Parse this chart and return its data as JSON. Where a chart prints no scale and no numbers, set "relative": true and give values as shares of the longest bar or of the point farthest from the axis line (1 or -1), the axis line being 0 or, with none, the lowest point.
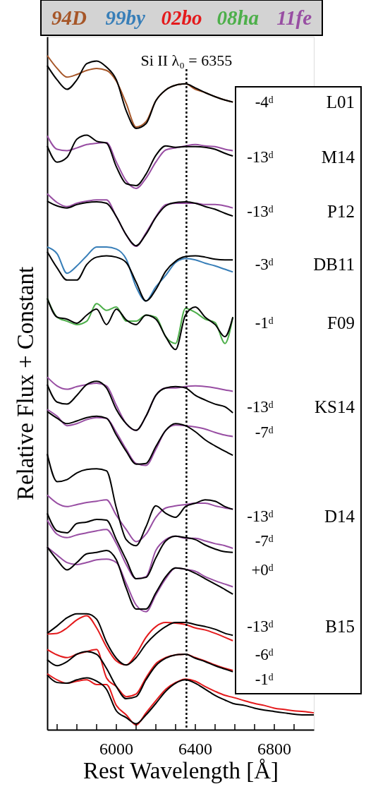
{
  "chart_data": {
    "type": "line",
    "relative": true,
    "xlabel": "Rest Wavelength [Å]",
    "ylabel": "Relative Flux + Constant",
    "xlim": [
      5650,
      7000
    ],
    "xticks": [
      {
        "value": 5700,
        "label": null
      },
      {
        "value": 5800,
        "label": null
      },
      {
        "value": 5900,
        "label": null
      },
      6000,
      {
        "value": 6100,
        "label": null
      },
      {
        "value": 6200,
        "label": null
      },
      {
        "value": 6300,
        "label": null
      },
      6400,
      {
        "value": 6500,
        "label": null
      },
      {
        "value": 6600,
        "label": null
      },
      {
        "value": 6700,
        "label": null
      },
      6800,
      {
        "value": 6900,
        "label": null
      }
    ],
    "tick_labels": "x",
    "grid": false,
    "legend": "top",
    "line_style": "solid",
    "x": [
      5650,
      5700,
      5750,
      5800,
      5850,
      5900,
      5950,
      6000,
      6050,
      6100,
      6150,
      6200,
      6250,
      6300,
      6350,
      6400,
      6450,
      6500,
      6550,
      6590
    ],
    "series": [
      {
        "name": "94D",
        "color": "#a65628",
        "values": [
          1.0,
          0.981,
          0.968,
          0.972,
          0.978,
          0.981,
          0.978,
          0.962,
          0.929,
          0.894,
          0.902,
          0.933,
          0.949,
          0.956,
          0.958,
          0.95,
          0.945,
          0.939,
          0.934,
          0.931
        ]
      },
      {
        "color": "#000000",
        "values": [
          0.985,
          0.964,
          0.95,
          0.964,
          0.988,
          0.992,
          0.983,
          0.964,
          0.918,
          0.892,
          0.899,
          0.933,
          0.949,
          0.956,
          0.958,
          0.952,
          0.945,
          0.939,
          0.934,
          0.931
        ]
      },
      {
        "name": "99by",
        "color": "#377eb8",
        "values": [
          0.716,
          0.706,
          0.677,
          0.688,
          0.703,
          0.716,
          0.716,
          0.713,
          0.698,
          0.657,
          0.636,
          0.657,
          0.674,
          0.693,
          0.699,
          0.697,
          0.692,
          0.688,
          0.683,
          0.679
        ]
      },
      {
        "color": "#000000",
        "values": [
          0.709,
          0.685,
          0.667,
          0.667,
          0.69,
          0.701,
          0.703,
          0.701,
          0.693,
          0.664,
          0.636,
          0.653,
          0.68,
          0.695,
          0.702,
          0.703,
          0.701,
          0.698,
          0.697,
          0.697
        ]
      },
      {
        "name": "02bo",
        "color": "#e41a1c",
        "values": [
          0.142,
          0.143,
          0.151,
          0.163,
          0.169,
          0.151,
          0.123,
          0.102,
          0.096,
          0.112,
          0.137,
          0.153,
          0.159,
          0.158,
          0.156,
          0.151,
          0.148,
          0.143,
          0.137,
          0.132
        ]
      },
      {
        "color": "#000000",
        "values": [
          0.143,
          0.154,
          0.166,
          0.172,
          0.172,
          0.164,
          0.13,
          0.106,
          0.096,
          0.107,
          0.127,
          0.142,
          0.153,
          0.159,
          0.159,
          0.156,
          0.153,
          0.149,
          0.143,
          0.14
        ]
      },
      {
        "color": "#e41a1c",
        "values": [
          0.119,
          0.111,
          0.107,
          0.112,
          0.116,
          0.119,
          0.077,
          0.064,
          0.049,
          0.053,
          0.077,
          0.098,
          0.107,
          0.111,
          0.112,
          0.107,
          0.102,
          0.096,
          0.091,
          0.088
        ]
      },
      {
        "color": "#000000",
        "values": [
          0.104,
          0.095,
          0.101,
          0.112,
          0.116,
          0.112,
          0.091,
          0.064,
          0.046,
          0.049,
          0.074,
          0.095,
          0.106,
          0.111,
          0.112,
          0.106,
          0.101,
          0.095,
          0.09,
          0.086
        ]
      },
      {
        "color": "#e41a1c",
        "x": [
          5650,
          5700,
          5750,
          5800,
          5850,
          5900,
          5950,
          6000,
          6050,
          6100,
          6150,
          6200,
          6250,
          6300,
          6350,
          6400,
          6450,
          6500,
          6550,
          6590,
          6650,
          6700,
          6750,
          6800,
          6850,
          6900,
          6950,
          7000
        ],
        "values": [
          0.083,
          0.074,
          0.069,
          0.072,
          0.074,
          0.067,
          0.067,
          0.036,
          0.022,
          0.007,
          0.025,
          0.043,
          0.06,
          0.07,
          0.075,
          0.072,
          0.064,
          0.057,
          0.051,
          0.048,
          0.043,
          0.039,
          0.036,
          0.032,
          0.03,
          0.028,
          0.027,
          0.025
        ]
      },
      {
        "color": "#000000",
        "x": [
          5650,
          5700,
          5750,
          5800,
          5850,
          5900,
          5950,
          6000,
          6050,
          6100,
          6150,
          6200,
          6250,
          6300,
          6350,
          6400,
          6450,
          6500,
          6550,
          6590,
          6650,
          6700,
          6750,
          6800,
          6850,
          6900,
          6950,
          7000
        ],
        "values": [
          0.081,
          0.07,
          0.069,
          0.074,
          0.077,
          0.072,
          0.06,
          0.028,
          0.018,
          0.009,
          0.022,
          0.039,
          0.057,
          0.069,
          0.074,
          0.069,
          0.06,
          0.051,
          0.044,
          0.039,
          0.036,
          0.032,
          0.029,
          0.027,
          0.025,
          0.023,
          0.022,
          0.022
        ]
      },
      {
        "name": "08ha",
        "color": "#4daf4a",
        "values": [
          0.64,
          0.612,
          0.606,
          0.601,
          0.606,
          0.632,
          0.622,
          0.627,
          0.606,
          0.606,
          0.615,
          0.612,
          0.583,
          0.573,
          0.625,
          0.619,
          0.609,
          0.604,
          0.573,
          0.612
        ]
      },
      {
        "color": "#000000",
        "values": [
          0.64,
          0.612,
          0.609,
          0.603,
          0.615,
          0.624,
          0.601,
          0.624,
          0.608,
          0.601,
          0.615,
          0.609,
          0.583,
          0.564,
          0.615,
          0.627,
          0.612,
          0.601,
          0.583,
          0.612
        ]
      },
      {
        "name": "11fe",
        "color": "#984ea3",
        "values": [
          0.881,
          0.861,
          0.859,
          0.863,
          0.868,
          0.87,
          0.871,
          0.842,
          0.814,
          0.803,
          0.818,
          0.842,
          0.86,
          0.863,
          0.866,
          0.868,
          0.866,
          0.865,
          0.861,
          0.859
        ]
      },
      {
        "color": "#000000",
        "values": [
          0.866,
          0.842,
          0.849,
          0.876,
          0.882,
          0.873,
          0.87,
          0.835,
          0.81,
          0.807,
          0.824,
          0.852,
          0.866,
          0.864,
          0.865,
          0.865,
          0.864,
          0.861,
          0.855,
          0.851
        ]
      },
      {
        "color": "#984ea3",
        "values": [
          0.795,
          0.782,
          0.776,
          0.781,
          0.784,
          0.786,
          0.786,
          0.761,
          0.734,
          0.717,
          0.737,
          0.761,
          0.779,
          0.781,
          0.781,
          0.781,
          0.779,
          0.779,
          0.777,
          0.774
        ]
      },
      {
        "color": "#000000",
        "values": [
          0.784,
          0.777,
          0.774,
          0.779,
          0.782,
          0.783,
          0.781,
          0.761,
          0.734,
          0.718,
          0.735,
          0.76,
          0.777,
          0.782,
          0.783,
          0.781,
          0.776,
          0.772,
          0.766,
          0.762
        ]
      },
      {
        "color": "#984ea3",
        "values": [
          0.523,
          0.51,
          0.505,
          0.509,
          0.512,
          0.514,
          0.51,
          0.481,
          0.454,
          0.444,
          0.465,
          0.496,
          0.507,
          0.507,
          0.509,
          0.51,
          0.509,
          0.507,
          0.504,
          0.502
        ]
      },
      {
        "color": "#000000",
        "values": [
          0.512,
          0.486,
          0.483,
          0.496,
          0.512,
          0.517,
          0.507,
          0.475,
          0.454,
          0.444,
          0.465,
          0.496,
          0.507,
          0.509,
          0.507,
          0.496,
          0.489,
          0.483,
          0.479,
          0.47
        ]
      },
      {
        "color": "#984ea3",
        "values": [
          0.475,
          0.465,
          0.451,
          0.454,
          0.46,
          0.463,
          0.462,
          0.441,
          0.416,
          0.395,
          0.392,
          0.416,
          0.444,
          0.452,
          0.451,
          0.449,
          0.446,
          0.441,
          0.437,
          0.435
        ]
      },
      {
        "color": "#000000",
        "values": [
          0.472,
          0.462,
          0.454,
          0.458,
          0.463,
          0.465,
          0.462,
          0.437,
          0.413,
          0.394,
          0.395,
          0.42,
          0.444,
          0.454,
          0.451,
          0.442,
          0.43,
          0.421,
          0.413,
          0.407
        ]
      },
      {
        "color": "#984ea3",
        "values": [
          0.348,
          0.336,
          0.331,
          0.334,
          0.337,
          0.339,
          0.341,
          0.318,
          0.297,
          0.279,
          0.29,
          0.315,
          0.329,
          0.332,
          0.334,
          0.336,
          0.336,
          0.332,
          0.329,
          0.327
        ]
      },
      {
        "color": "#000000",
        "values": [
          0.409,
          0.368,
          0.371,
          0.381,
          0.386,
          0.387,
          0.384,
          0.329,
          0.282,
          0.273,
          0.301,
          0.332,
          0.321,
          0.315,
          0.331,
          0.336,
          0.341,
          0.339,
          0.331,
          0.327
        ]
      },
      {
        "color": "#984ea3",
        "values": [
          0.311,
          0.29,
          0.285,
          0.289,
          0.292,
          0.295,
          0.297,
          0.276,
          0.245,
          0.224,
          0.227,
          0.266,
          0.282,
          0.287,
          0.284,
          0.284,
          0.28,
          0.276,
          0.273,
          0.269
        ]
      },
      {
        "color": "#000000",
        "values": [
          0.321,
          0.295,
          0.292,
          0.306,
          0.308,
          0.312,
          0.311,
          0.282,
          0.252,
          0.224,
          0.226,
          0.255,
          0.28,
          0.287,
          0.285,
          0.282,
          0.274,
          0.268,
          0.264,
          0.263
        ]
      },
      {
        "color": "#984ea3",
        "values": [
          0.271,
          0.259,
          0.248,
          0.245,
          0.248,
          0.252,
          0.253,
          0.248,
          0.217,
          0.185,
          0.175,
          0.2,
          0.224,
          0.24,
          0.238,
          0.235,
          0.227,
          0.221,
          0.216,
          0.212
        ]
      },
      {
        "color": "#000000",
        "values": [
          0.271,
          0.252,
          0.237,
          0.248,
          0.261,
          0.263,
          0.266,
          0.252,
          0.21,
          0.179,
          0.179,
          0.203,
          0.227,
          0.24,
          0.238,
          0.232,
          0.224,
          0.216,
          0.208,
          0.201
        ]
      }
    ],
    "ref_lines": [
      {
        "axis": "x",
        "value": 6355,
        "label": "Si II λ₀ = 6355",
        "line_style": "dotted"
      }
    ],
    "annotations": [
      "-4ᵈ",
      "L01",
      "-13ᵈ",
      "M14",
      "-13ᵈ",
      "P12",
      "-3ᵈ",
      "DB11",
      "-1ᵈ",
      "F09",
      "-13ᵈ",
      "KS14",
      "-7ᵈ",
      "-13ᵈ",
      "D14",
      "-7ᵈ",
      "+0ᵈ",
      "-13ᵈ",
      "B15",
      "-6ᵈ",
      "-1ᵈ"
    ]
  }
}
